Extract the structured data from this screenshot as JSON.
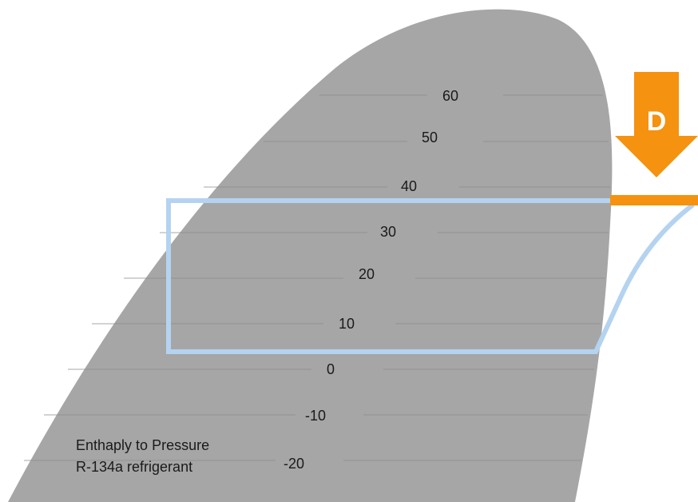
{
  "diagram": {
    "type": "pressure-enthalpy",
    "isotherms": [
      "60",
      "50",
      "40",
      "30",
      "20",
      "10",
      "0",
      "-10",
      "-20"
    ],
    "caption_line1": "Enthaply to Pressure",
    "caption_line2": "R-134a refrigerant",
    "marker_letter": "D",
    "colors": {
      "dome": "#a6a6a6",
      "cycle": "#b4d3f0",
      "arrow": "#f5920f",
      "isotherm_line": "#8a8a8a"
    }
  }
}
